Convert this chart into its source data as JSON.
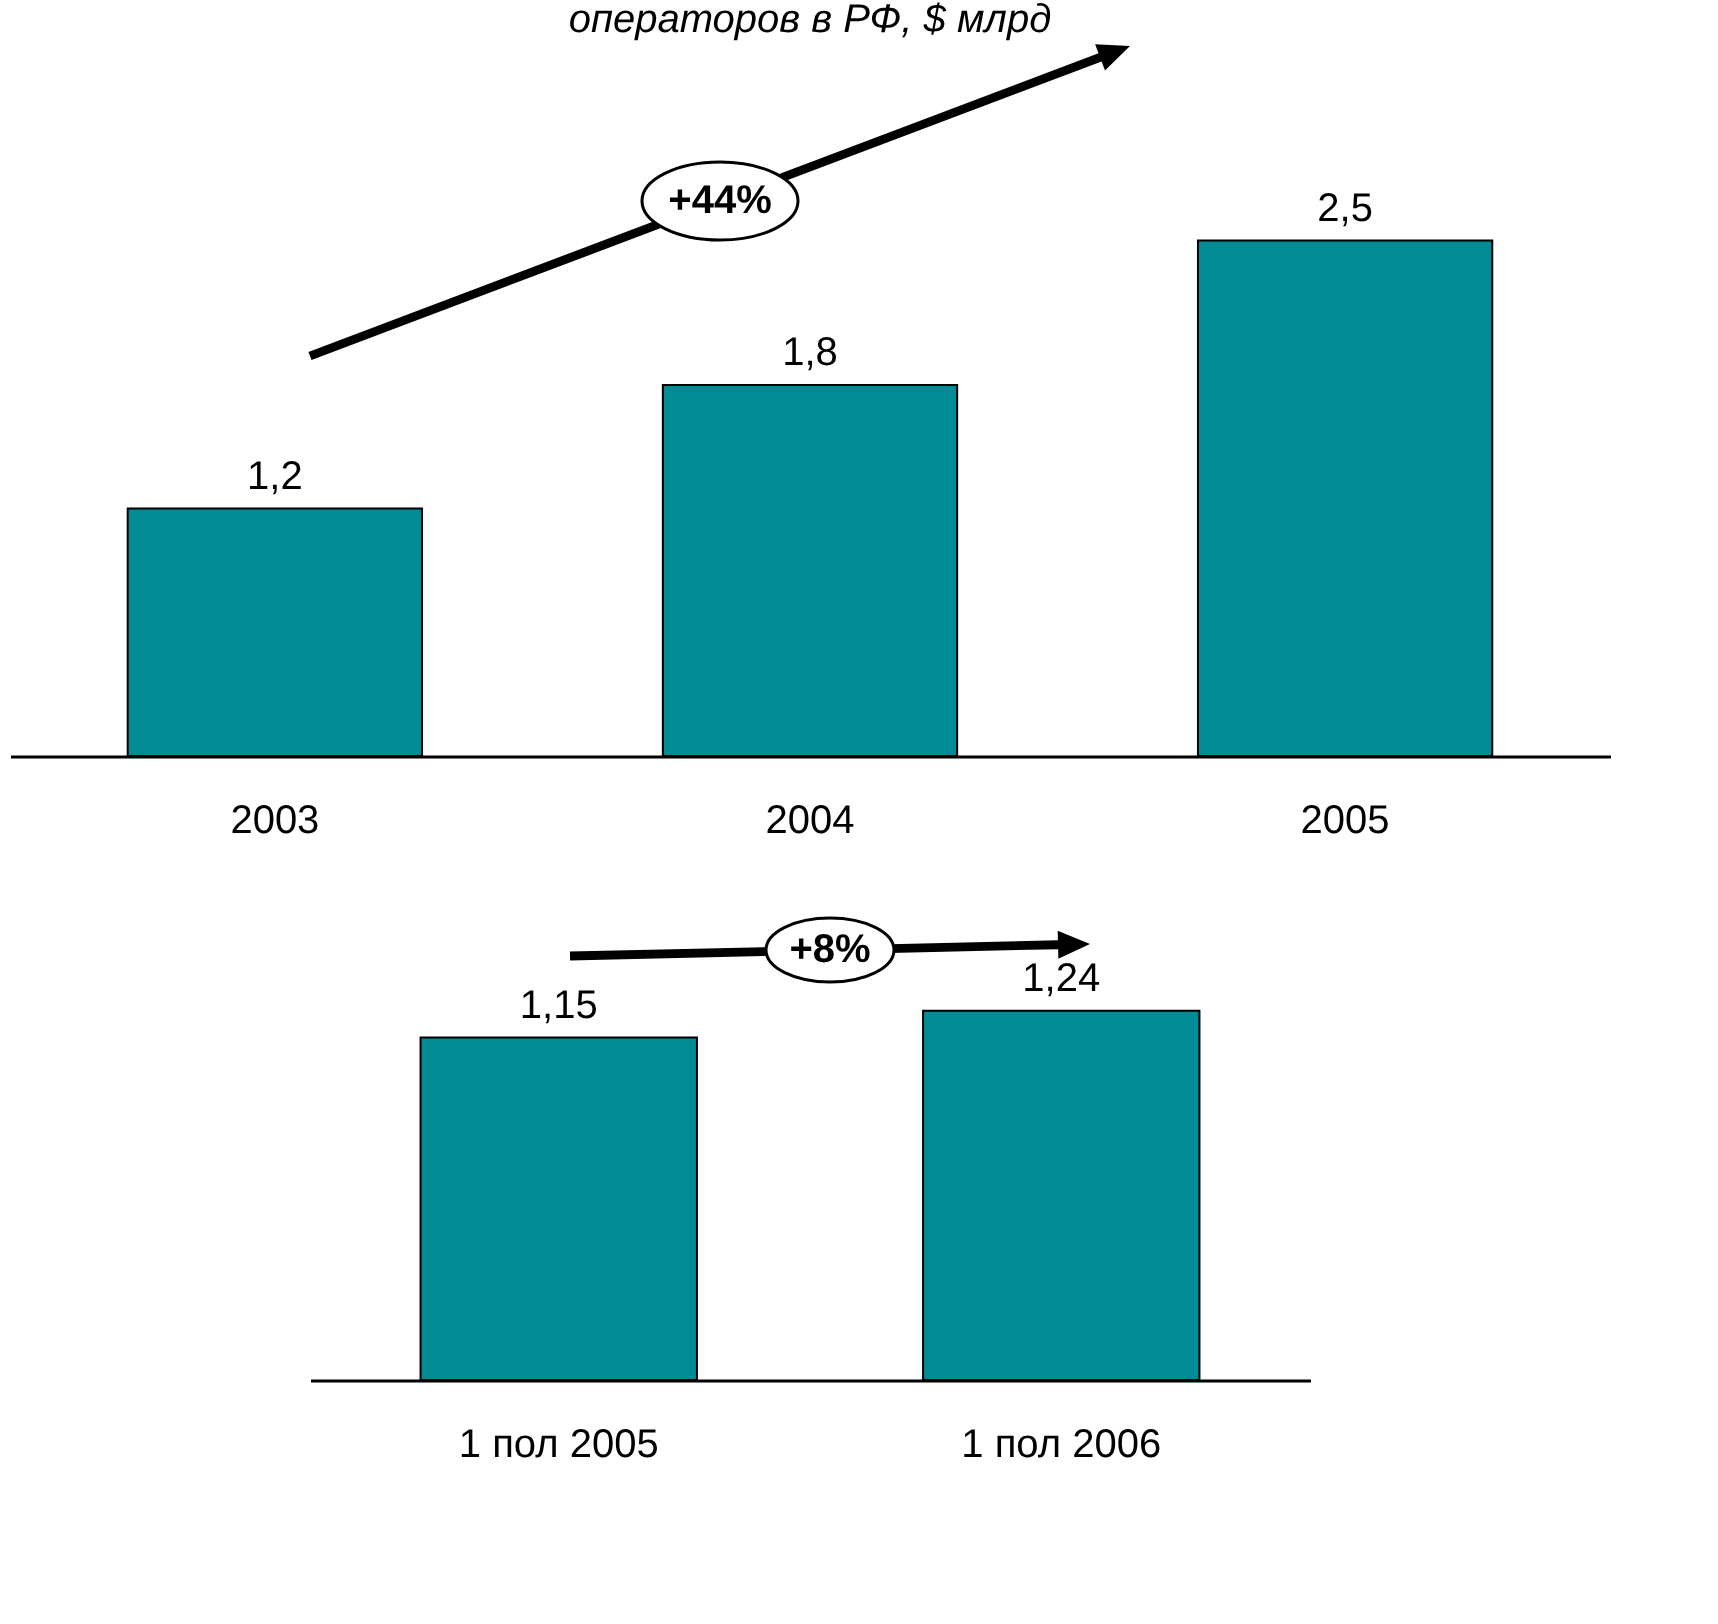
{
  "chart_data": [
    {
      "type": "bar",
      "title": "операторов в РФ, $ млрд",
      "categories": [
        "2003",
        "2004",
        "2005"
      ],
      "values": [
        1.2,
        1.8,
        2.5
      ],
      "value_labels": [
        "1,2",
        "1,8",
        "2,5"
      ],
      "color": "#008b95",
      "annotations": [
        "+44%"
      ]
    },
    {
      "type": "bar",
      "categories": [
        "1 пол 2005",
        "1 пол 2006"
      ],
      "values": [
        1.15,
        1.24
      ],
      "value_labels": [
        "1,15",
        "1,24"
      ],
      "color": "#008b95",
      "annotations": [
        "+8%"
      ]
    }
  ]
}
